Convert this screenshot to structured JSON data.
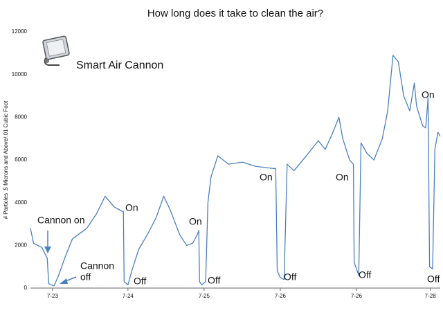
{
  "chart_data": {
    "type": "line",
    "title": "How long does it take to clean the air?",
    "ylabel": "# Particles .5 Microns and Above/.01 Cubic Foot",
    "logo_text": "Smart Air Cannon",
    "annotations": [
      "Cannon on",
      "Cannon",
      "off",
      "On",
      "Off",
      "On",
      "Off",
      "On",
      "Off",
      "On",
      "Off",
      "On",
      "Off"
    ],
    "xlim": [
      0,
      5.38
    ],
    "xticks": [
      {
        "value": 0.29,
        "label": "7-23"
      },
      {
        "value": 1.28,
        "label": "7-24"
      },
      {
        "value": 2.28,
        "label": "7-25"
      },
      {
        "value": 3.28,
        "label": "7-26"
      },
      {
        "value": 4.28,
        "label": "7-26"
      },
      {
        "value": 5.25,
        "label": "7-28"
      }
    ],
    "ylim": [
      0,
      12000
    ],
    "yticks": [
      0,
      2000,
      4000,
      6000,
      8000,
      10000,
      12000
    ],
    "grid": false,
    "x": [
      0,
      0.04,
      0.15,
      0.22,
      0.24,
      0.31,
      0.37,
      0.46,
      0.55,
      0.74,
      0.87,
      0.98,
      1.1,
      1.2,
      1.22,
      1.23,
      1.28,
      1.33,
      1.42,
      1.55,
      1.65,
      1.75,
      1.83,
      1.96,
      2.05,
      2.13,
      2.19,
      2.21,
      2.22,
      2.25,
      2.3,
      2.33,
      2.37,
      2.46,
      2.6,
      2.78,
      2.96,
      3.19,
      3.22,
      3.24,
      3.28,
      3.33,
      3.37,
      3.46,
      3.6,
      3.78,
      3.87,
      3.96,
      4.05,
      4.1,
      4.19,
      4.24,
      4.25,
      4.31,
      4.34,
      4.42,
      4.51,
      4.62,
      4.69,
      4.76,
      4.83,
      4.9,
      4.98,
      5.04,
      5.07,
      5.15,
      5.19,
      5.22,
      5.24,
      5.28,
      5.31,
      5.35,
      5.38
    ],
    "series": [
      {
        "name": "Particles",
        "color": "#4a7fc1",
        "values": [
          2800,
          2100,
          1900,
          1400,
          200,
          100,
          600,
          1500,
          2300,
          2800,
          3500,
          4300,
          3800,
          3600,
          3600,
          300,
          150,
          800,
          1800,
          2600,
          3300,
          4300,
          3700,
          2500,
          2000,
          2100,
          2500,
          2700,
          300,
          150,
          300,
          4000,
          5200,
          6200,
          5800,
          5900,
          5700,
          5600,
          5600,
          800,
          500,
          400,
          5800,
          5500,
          6100,
          6900,
          6500,
          7200,
          8000,
          7000,
          6000,
          5800,
          1200,
          600,
          6800,
          6300,
          6000,
          7000,
          8300,
          10900,
          10600,
          9000,
          8300,
          9600,
          8500,
          7600,
          7500,
          8900,
          1000,
          900,
          6500,
          7300,
          7100
        ]
      }
    ]
  }
}
